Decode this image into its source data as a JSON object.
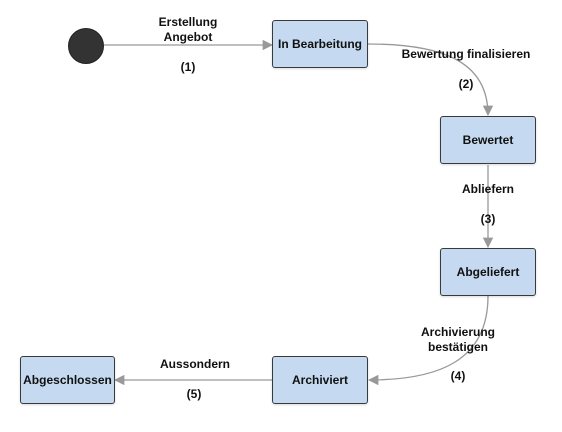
{
  "states": {
    "in_bearbeitung": "In Bearbeitung",
    "bewertet": "Bewertet",
    "abgeliefert": "Abgeliefert",
    "archiviert": "Archiviert",
    "abgeschlossen": "Abgeschlossen"
  },
  "transitions": {
    "t1": {
      "label_line1": "Erstellung",
      "label_line2": "Angebot",
      "number": "(1)"
    },
    "t2": {
      "label": "Bewertung finalisieren",
      "number": "(2)"
    },
    "t3": {
      "label": "Abliefern",
      "number": "(3)"
    },
    "t4": {
      "label_line1": "Archivierung",
      "label_line2": "bestätigen",
      "number": "(4)"
    },
    "t5": {
      "label": "Aussondern",
      "number": "(5)"
    }
  },
  "colors": {
    "state_fill": "#c5daf0",
    "start_node": "#333333",
    "edge": "#999999"
  }
}
